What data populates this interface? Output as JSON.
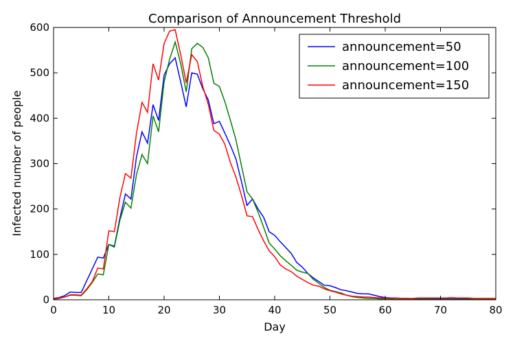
{
  "chart_data": {
    "type": "line",
    "title": "Comparison of Announcement Threshold",
    "xlabel": "Day",
    "ylabel": "Infected number of people",
    "xlim": [
      0,
      80
    ],
    "ylim": [
      0,
      600
    ],
    "xticks": [
      0,
      10,
      20,
      30,
      40,
      50,
      60,
      70,
      80
    ],
    "yticks": [
      0,
      100,
      200,
      300,
      400,
      500,
      600
    ],
    "grid": false,
    "legend_position": "top-right",
    "series": [
      {
        "name": "announcement=50",
        "color": "#0000ff",
        "x": [
          0,
          1,
          2,
          3,
          4,
          5,
          6,
          7,
          8,
          9,
          10,
          11,
          12,
          13,
          14,
          15,
          16,
          17,
          18,
          19,
          20,
          21,
          22,
          23,
          24,
          25,
          26,
          27,
          28,
          29,
          30,
          31,
          32,
          33,
          34,
          35,
          36,
          37,
          38,
          39,
          40,
          41,
          42,
          43,
          44,
          45,
          46,
          47,
          48,
          49,
          50,
          51,
          52,
          53,
          54,
          55,
          56,
          57,
          58,
          59,
          60,
          61,
          62,
          63,
          64,
          65,
          66,
          67,
          68,
          69,
          70,
          71,
          72,
          73,
          74,
          75,
          76,
          77,
          78,
          79,
          80
        ],
        "y": [
          3,
          5,
          9,
          17,
          16,
          16,
          42,
          68,
          94,
          92,
          122,
          118,
          180,
          233,
          222,
          315,
          370,
          345,
          430,
          395,
          495,
          520,
          533,
          480,
          425,
          500,
          497,
          465,
          440,
          388,
          393,
          367,
          340,
          310,
          260,
          208,
          222,
          200,
          182,
          150,
          142,
          128,
          115,
          102,
          82,
          72,
          58,
          48,
          40,
          32,
          31,
          27,
          22,
          20,
          17,
          14,
          13,
          13,
          10,
          7,
          5,
          4,
          4,
          3,
          3,
          2,
          2,
          2,
          2,
          2,
          2,
          2,
          2,
          2,
          2,
          2,
          2,
          2,
          2,
          2,
          2
        ]
      },
      {
        "name": "announcement=100",
        "color": "#008000",
        "x": [
          0,
          1,
          2,
          3,
          4,
          5,
          6,
          7,
          8,
          9,
          10,
          11,
          12,
          13,
          14,
          15,
          16,
          17,
          18,
          19,
          20,
          21,
          22,
          23,
          24,
          25,
          26,
          27,
          28,
          29,
          30,
          31,
          32,
          33,
          34,
          35,
          36,
          37,
          38,
          39,
          40,
          41,
          42,
          43,
          44,
          45,
          46,
          47,
          48,
          49,
          50,
          51,
          52,
          53,
          54,
          55,
          56,
          57,
          58,
          59,
          60,
          61,
          62,
          63,
          64,
          65,
          66,
          67,
          68,
          69,
          70,
          71,
          72,
          73,
          74,
          75,
          76,
          77,
          78,
          79,
          80
        ],
        "y": [
          1,
          3,
          6,
          10,
          10,
          9,
          22,
          38,
          57,
          55,
          122,
          116,
          175,
          215,
          202,
          276,
          320,
          300,
          405,
          370,
          480,
          530,
          568,
          520,
          458,
          553,
          565,
          556,
          533,
          477,
          470,
          436,
          395,
          352,
          295,
          238,
          222,
          193,
          160,
          125,
          112,
          97,
          86,
          76,
          65,
          61,
          58,
          45,
          36,
          27,
          21,
          18,
          15,
          10,
          7,
          5,
          4,
          3,
          3,
          2,
          2,
          2,
          1,
          1,
          1,
          1,
          1,
          1,
          1,
          1,
          1,
          1,
          1,
          1,
          1,
          1,
          1,
          1,
          1,
          1,
          1
        ]
      },
      {
        "name": "announcement=150",
        "color": "#ff0000",
        "x": [
          0,
          1,
          2,
          3,
          4,
          5,
          6,
          7,
          8,
          9,
          10,
          11,
          12,
          13,
          14,
          15,
          16,
          17,
          18,
          19,
          20,
          21,
          22,
          23,
          24,
          25,
          26,
          27,
          28,
          29,
          30,
          31,
          32,
          33,
          34,
          35,
          36,
          37,
          38,
          39,
          40,
          41,
          42,
          43,
          44,
          45,
          46,
          47,
          48,
          49,
          50,
          51,
          52,
          53,
          54,
          55,
          56,
          57,
          58,
          59,
          60,
          61,
          62,
          63,
          64,
          65,
          66,
          67,
          68,
          69,
          70,
          71,
          72,
          73,
          74,
          75,
          76,
          77,
          78,
          79,
          80
        ],
        "y": [
          2,
          4,
          6,
          11,
          11,
          10,
          24,
          40,
          70,
          68,
          152,
          150,
          225,
          278,
          268,
          367,
          435,
          413,
          520,
          484,
          565,
          592,
          595,
          540,
          478,
          540,
          525,
          470,
          430,
          373,
          365,
          342,
          302,
          270,
          230,
          185,
          183,
          155,
          130,
          108,
          95,
          77,
          68,
          62,
          52,
          45,
          38,
          32,
          30,
          24,
          20,
          17,
          13,
          10,
          8,
          7,
          6,
          6,
          5,
          4,
          4,
          3,
          4,
          3,
          3,
          3,
          4,
          4,
          4,
          4,
          4,
          4,
          5,
          4,
          4,
          4,
          3,
          3,
          3,
          3,
          3
        ]
      }
    ]
  }
}
